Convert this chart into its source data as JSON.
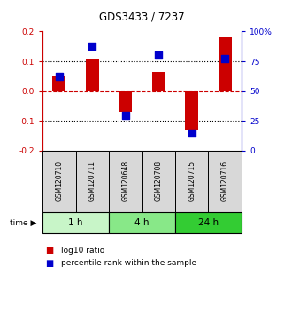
{
  "title": "GDS3433 / 7237",
  "samples": [
    "GSM120710",
    "GSM120711",
    "GSM120648",
    "GSM120708",
    "GSM120715",
    "GSM120716"
  ],
  "log10_ratio": [
    0.05,
    0.11,
    -0.07,
    0.065,
    -0.13,
    0.18
  ],
  "percentile_rank": [
    62.5,
    87.5,
    30.0,
    80.0,
    15.0,
    77.0
  ],
  "ylim_left": [
    -0.2,
    0.2
  ],
  "ylim_right": [
    0,
    100
  ],
  "yticks_left": [
    -0.2,
    -0.1,
    0.0,
    0.1,
    0.2
  ],
  "yticks_right": [
    0,
    25,
    50,
    75,
    100
  ],
  "ytick_labels_right": [
    "0",
    "25",
    "50",
    "75",
    "100%"
  ],
  "hlines_dotted": [
    0.1,
    -0.1
  ],
  "hline_red": 0.0,
  "bar_color": "#cc0000",
  "square_color": "#0000cc",
  "bar_width": 0.4,
  "square_size": 28,
  "time_groups": [
    {
      "label": "1 h",
      "start": 0,
      "end": 2,
      "color": "#c8f5c8"
    },
    {
      "label": "4 h",
      "start": 2,
      "end": 4,
      "color": "#88e888"
    },
    {
      "label": "24 h",
      "start": 4,
      "end": 6,
      "color": "#33cc33"
    }
  ],
  "left_axis_color": "#cc0000",
  "right_axis_color": "#0000cc",
  "background_color": "#ffffff",
  "legend_log10": "log10 ratio",
  "legend_percentile": "percentile rank within the sample",
  "sample_box_color": "#d8d8d8",
  "tick_fontsize": 6.5,
  "title_fontsize": 8.5,
  "sample_fontsize": 5.5,
  "time_fontsize": 7.5,
  "legend_fontsize": 6.5
}
